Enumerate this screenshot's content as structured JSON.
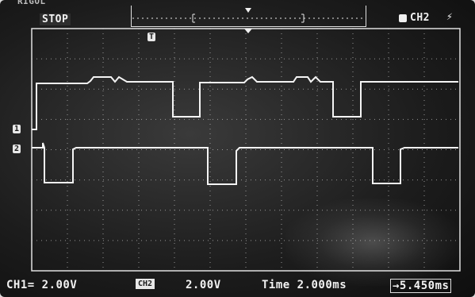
{
  "header": {
    "cut_label": "RIGOL",
    "status": "STOP",
    "trigger_source": "CH2",
    "trigger_slope_icon": "rising-edge-icon",
    "trigger_tag": "T"
  },
  "channels": {
    "ch1_marker": "1",
    "ch2_marker": "2"
  },
  "footer": {
    "ch1_scale": "CH1= 2.00V",
    "ch2_tag": "CH2",
    "ch2_scale": "2.00V",
    "timebase": "Time 2.000ms",
    "trigger_offset": "→5.450ms"
  },
  "colors": {
    "trace": "#f4f4f4",
    "grid": "#cfcfcf",
    "text": "#f2f2f2"
  }
}
